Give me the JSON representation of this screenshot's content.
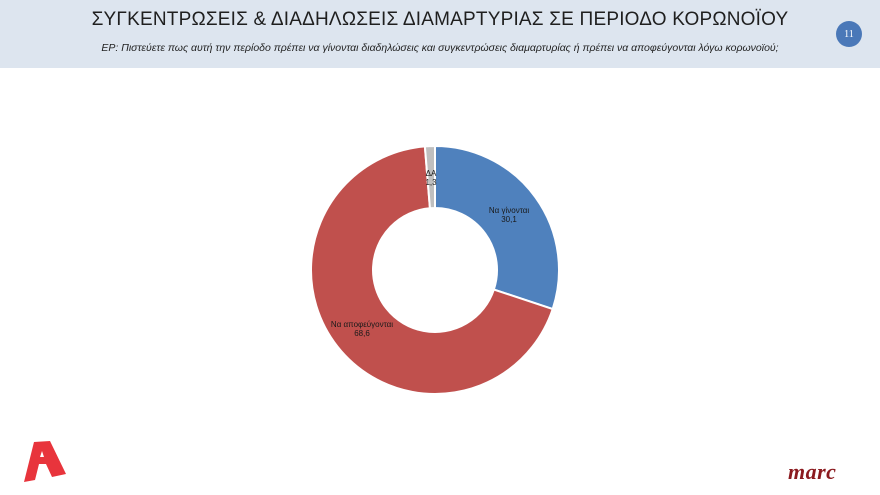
{
  "header": {
    "title": "ΣΥΓΚΕΝΤΡΩΣΕΙΣ & ΔΙΑΔΗΛΩΣΕΙΣ ΔΙΑΜΑΡΤΥΡΙΑΣ ΣΕ ΠΕΡΙΟΔΟ ΚΟΡΩΝΟΪΟΥ",
    "subtitle": "ΕΡ: Πιστεύετε πως αυτή την περίοδο πρέπει να γίνονται διαδηλώσεις και συγκεντρώσεις διαμαρτυρίας ή πρέπει να αποφεύγονται λόγω κορωνοϊού;",
    "page_number": "11"
  },
  "chart_data": {
    "type": "pie",
    "subtype": "donut",
    "title": "ΣΥΓΚΕΝΤΡΩΣΕΙΣ & ΔΙΑΔΗΛΩΣΕΙΣ ΔΙΑΜΑΡΤΥΡΙΑΣ ΣΕ ΠΕΡΙΟΔΟ ΚΟΡΩΝΟΪΟΥ",
    "categories": [
      "Να γίνονται",
      "Να αποφεύγονται",
      "ΔΑ"
    ],
    "values": [
      30.1,
      68.6,
      1.3
    ],
    "value_labels": [
      "30,1",
      "68,6",
      "1,3"
    ],
    "colors": [
      "#4f81bd",
      "#c0504d",
      "#bfbfbf"
    ],
    "legend": "none",
    "start_angle": "12 o'clock, clockwise"
  },
  "logos": {
    "left": "alpha-logo",
    "right": "marc"
  },
  "colors": {
    "header_bg": "#dde5ef",
    "badge": "#4a78b8",
    "marc": "#8b1a1f",
    "alpha": "#e8343c"
  }
}
